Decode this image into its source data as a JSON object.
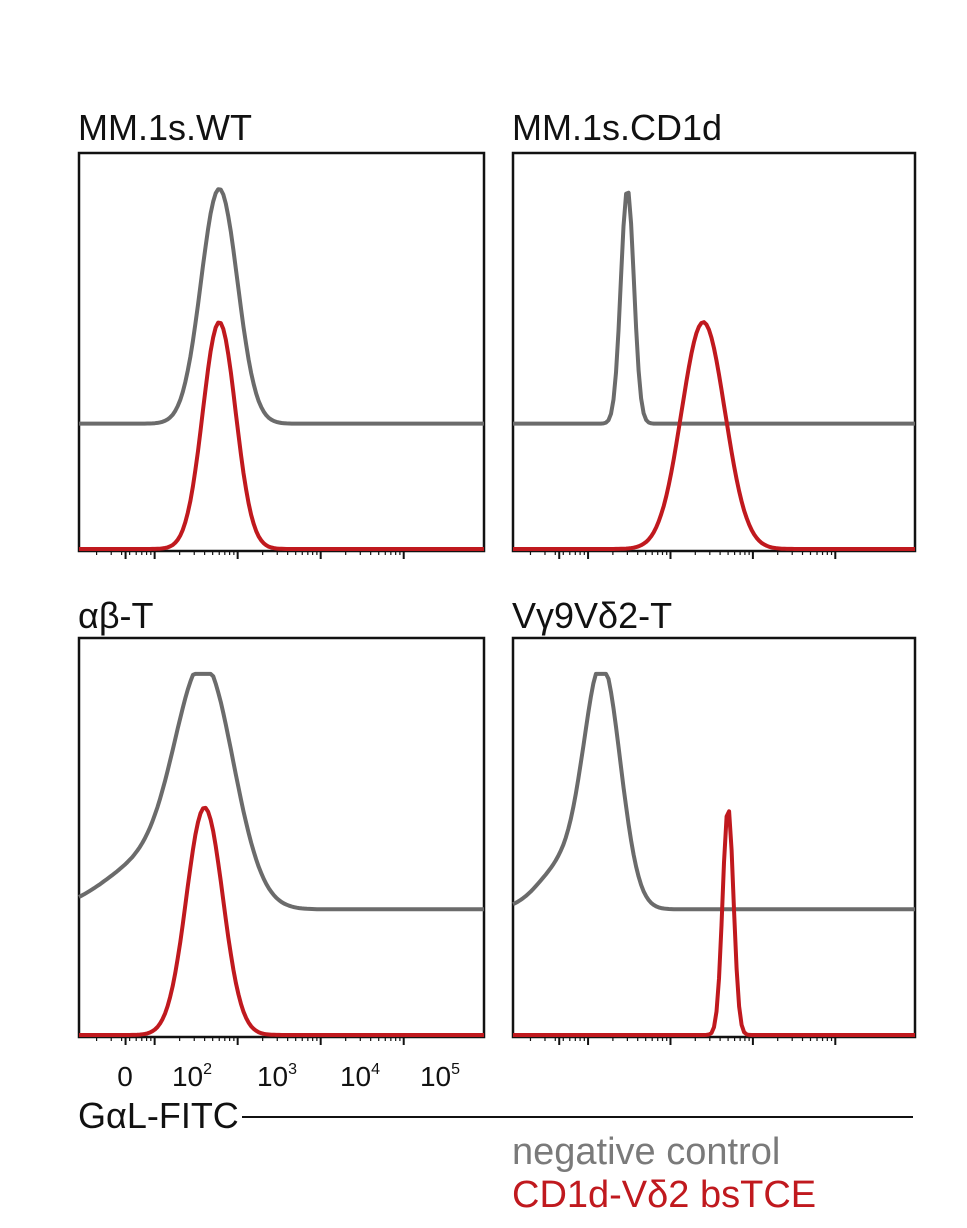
{
  "colors": {
    "negative": "#6b6b6b",
    "bstce": "#c0191e",
    "axis": "#111111"
  },
  "chart_data": {
    "type": "line",
    "title": "",
    "xlabel": "GαL-FITC",
    "ylabel": "",
    "x_scale": "biexponential (log-like, FITC fluorescence)",
    "x_ticks": [
      {
        "base": "0",
        "exp": ""
      },
      {
        "base": "10",
        "exp": "2"
      },
      {
        "base": "10",
        "exp": "3"
      },
      {
        "base": "10",
        "exp": "4"
      },
      {
        "base": "10",
        "exp": "5"
      }
    ],
    "legend": [
      "negative control",
      "CD1d-Vδ2 bsTCE"
    ],
    "legend_position": "bottom-right",
    "panels": [
      {
        "title": "MM.1s.WT",
        "series": [
          {
            "name": "negative control",
            "peak_fitc": 600,
            "relative_width": 1.0,
            "shape": "broad"
          },
          {
            "name": "CD1d-Vδ2 bsTCE",
            "peak_fitc": 600,
            "relative_width": 0.9,
            "shape": "narrow"
          }
        ]
      },
      {
        "title": "MM.1s.CD1d",
        "series": [
          {
            "name": "negative control",
            "peak_fitc": 300,
            "relative_width": 0.6,
            "shape": "sharp"
          },
          {
            "name": "CD1d-Vδ2 bsTCE",
            "peak_fitc": 2500,
            "relative_width": 1.2,
            "shape": "broad"
          }
        ]
      },
      {
        "title": "αβ-T",
        "series": [
          {
            "name": "negative control",
            "peak_fitc": 400,
            "relative_width": 1.6,
            "shape": "shouldered"
          },
          {
            "name": "CD1d-Vδ2 bsTCE",
            "peak_fitc": 400,
            "relative_width": 1.0,
            "shape": "narrow"
          }
        ]
      },
      {
        "title": "Vγ9Vδ2-T",
        "series": [
          {
            "name": "negative control",
            "peak_fitc": 150,
            "relative_width": 1.0,
            "shape": "shouldered"
          },
          {
            "name": "CD1d-Vδ2 bsTCE",
            "peak_fitc": 5000,
            "relative_width": 0.5,
            "shape": "sharp"
          }
        ]
      }
    ]
  }
}
